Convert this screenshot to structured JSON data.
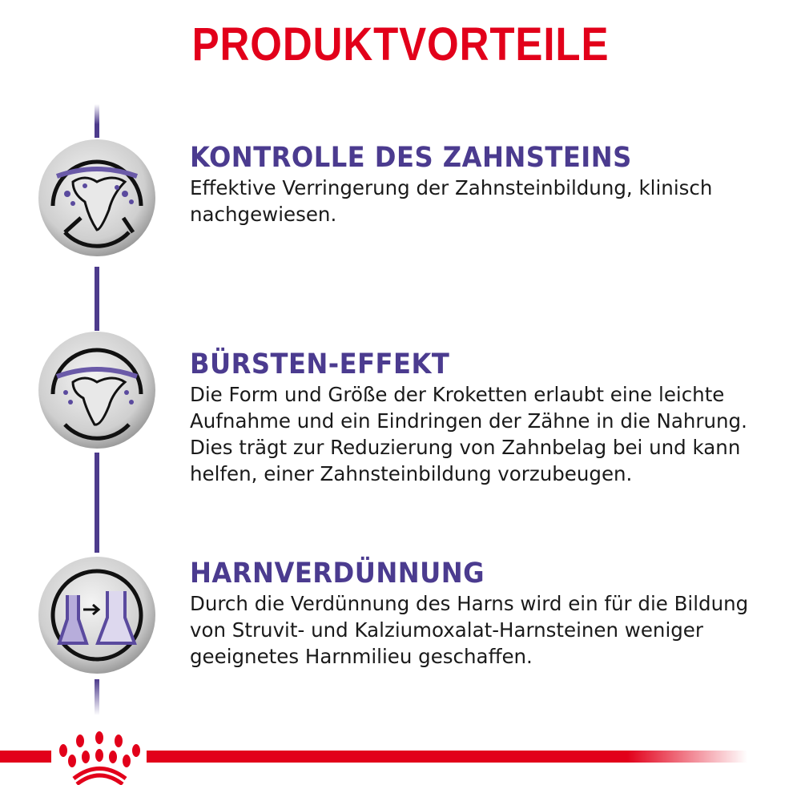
{
  "title": "PRODUKTVORTEILE",
  "colors": {
    "title": "#e2001a",
    "heading": "#4b3b8f",
    "line": "#4d3b8c",
    "brand_red": "#e2001a"
  },
  "benefits": [
    {
      "icon": "tartar-control-icon",
      "heading": "KONTROLLE DES ZAHNSTEINS",
      "text": "Effektive Verringerung der Zahnsteinbildung, klinisch\nnachgewiesen."
    },
    {
      "icon": "brushing-effect-icon",
      "heading": "BÜRSTEN-EFFEKT",
      "text": "Die Form und Größe der Kroketten erlaubt eine leichte\nAufnahme und ein Eindringen der Zähne in die Nahrung.\nDies trägt zur Reduzierung von Zahnbelag bei und kann\nhelfen, einer Zahnsteinbildung vorzubeugen."
    },
    {
      "icon": "urine-dilution-icon",
      "heading": "HARNVERDÜNNUNG",
      "text": "Durch die Verdünnung des Harns wird ein für die Bildung\nvon Struvit- und Kalziumoxalat-Harnsteinen weniger\ngeeignetes Harnmilieu geschaffen."
    }
  ],
  "logo": "royal-canin-crown-logo"
}
